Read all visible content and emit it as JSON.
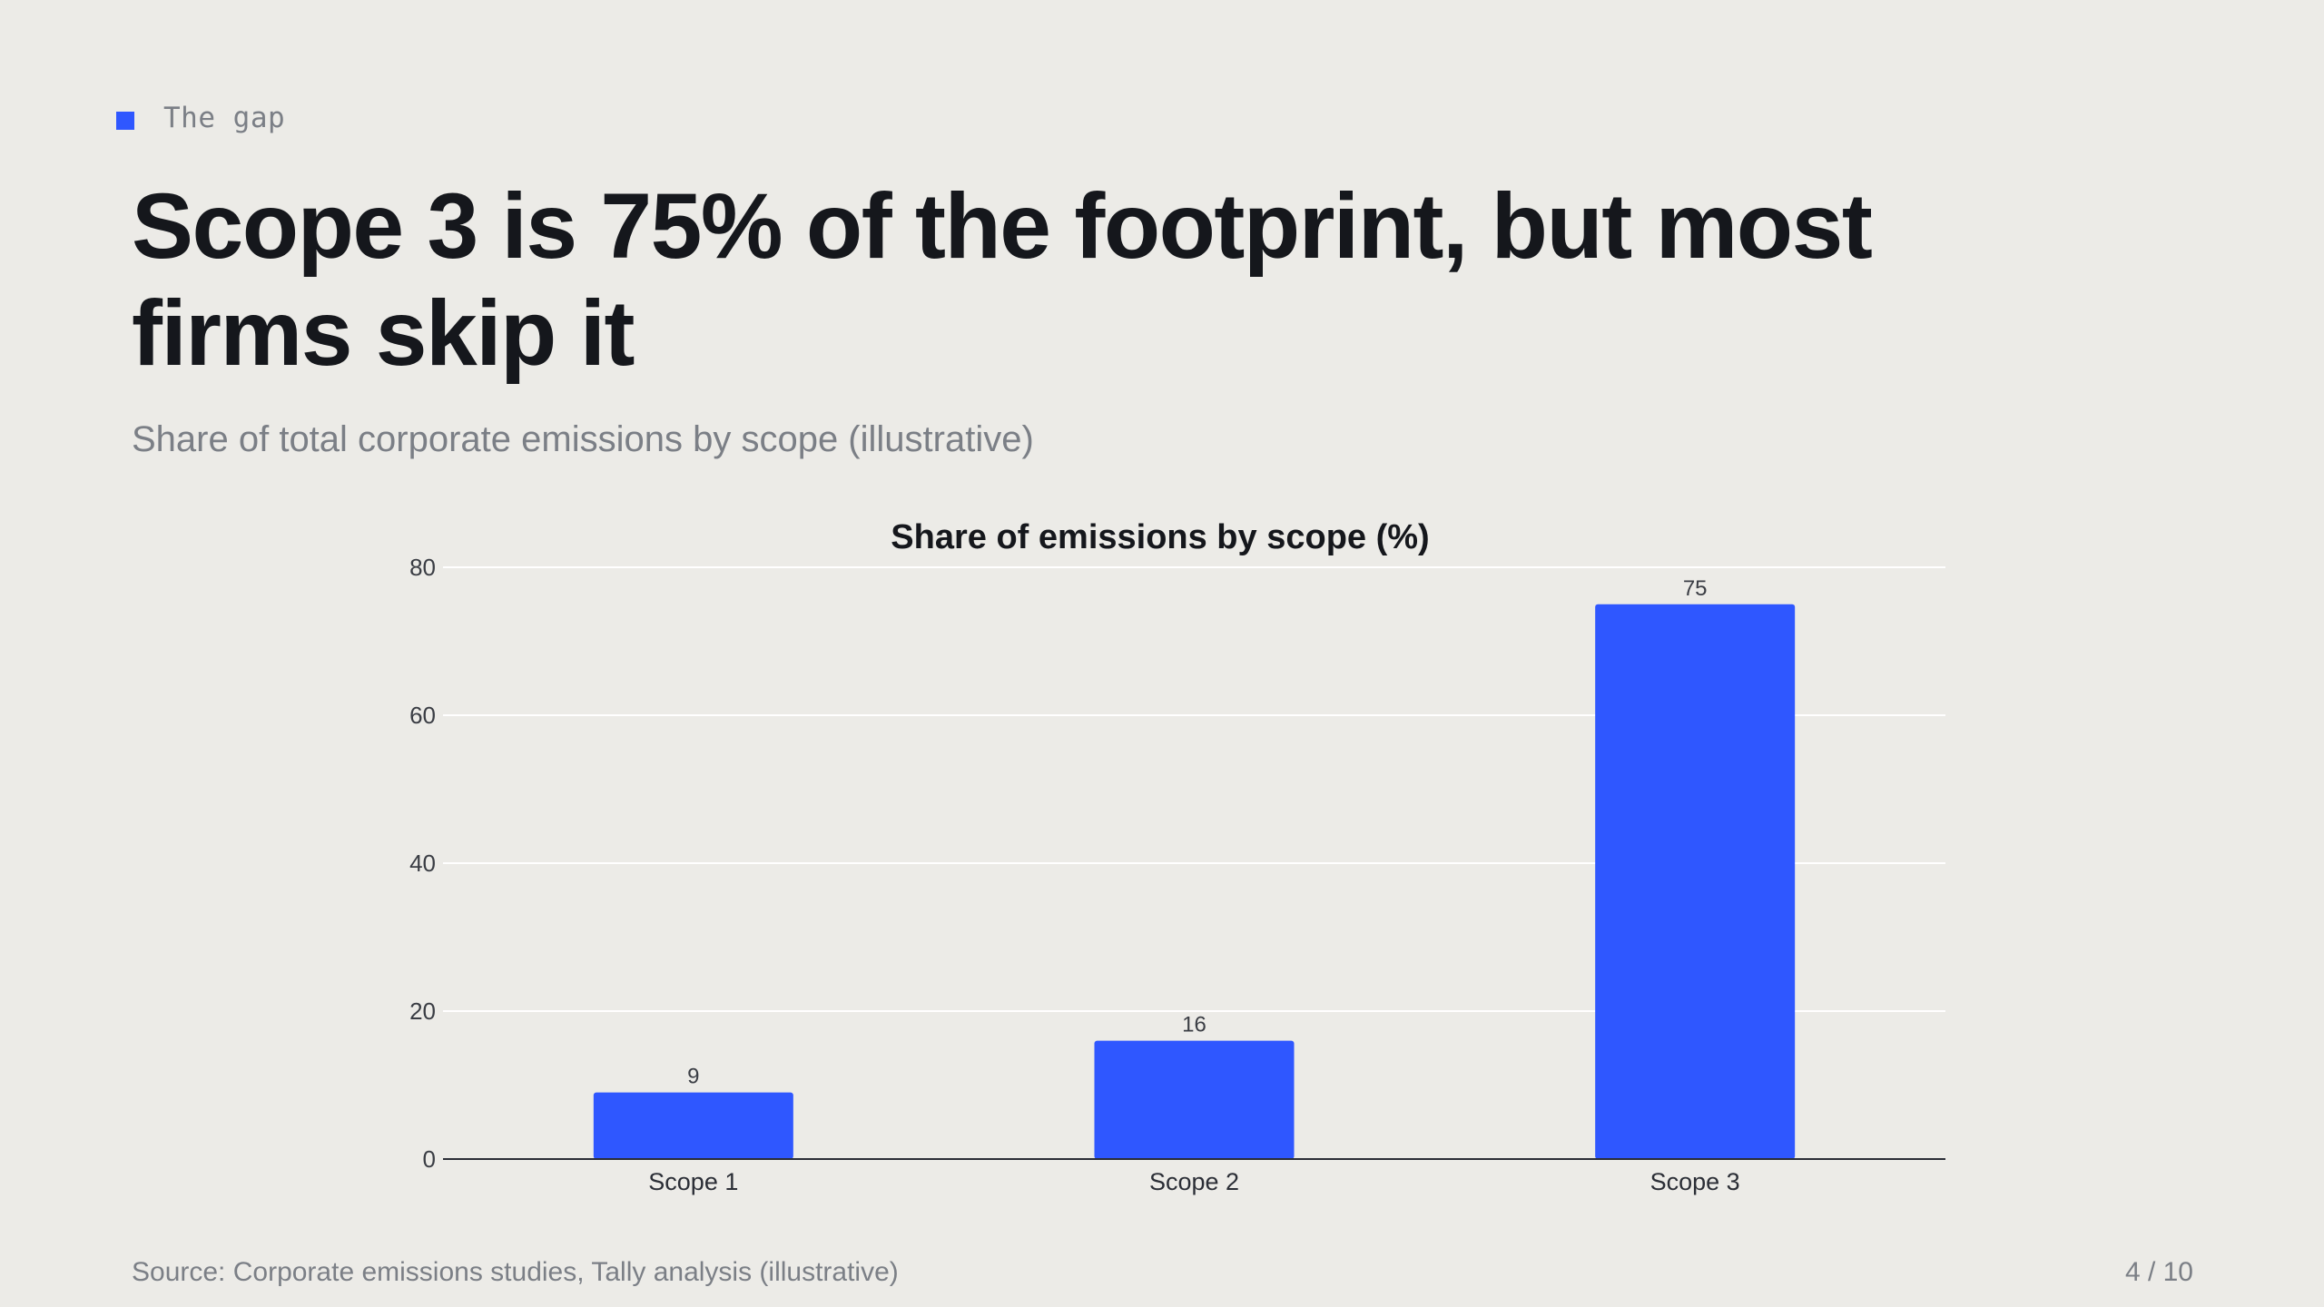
{
  "slide": {
    "kicker": "The gap",
    "title": "Scope 3 is 75% of the footprint, but most firms skip it",
    "subtitle": "Share of total corporate emissions by scope (illustrative)",
    "source": "Source: Corporate emissions studies, Tally analysis (illustrative)",
    "page": "4 / 10"
  },
  "colors": {
    "accent": "#2f57ff",
    "background": "#ecebe7",
    "text": "#15171c",
    "muted": "#7b7f86",
    "grid": "#ffffff",
    "axis": "#2b2e36"
  },
  "chart_data": {
    "type": "bar",
    "title": "Share of emissions by scope (%)",
    "categories": [
      "Scope 1",
      "Scope 2",
      "Scope 3"
    ],
    "values": [
      9,
      16,
      75
    ],
    "data_labels": [
      "9",
      "16",
      "75"
    ],
    "xlabel": "",
    "ylabel": "",
    "ylim": [
      0,
      80
    ],
    "yticks": [
      0,
      20,
      40,
      60,
      80
    ],
    "grid": true,
    "legend": "none"
  }
}
